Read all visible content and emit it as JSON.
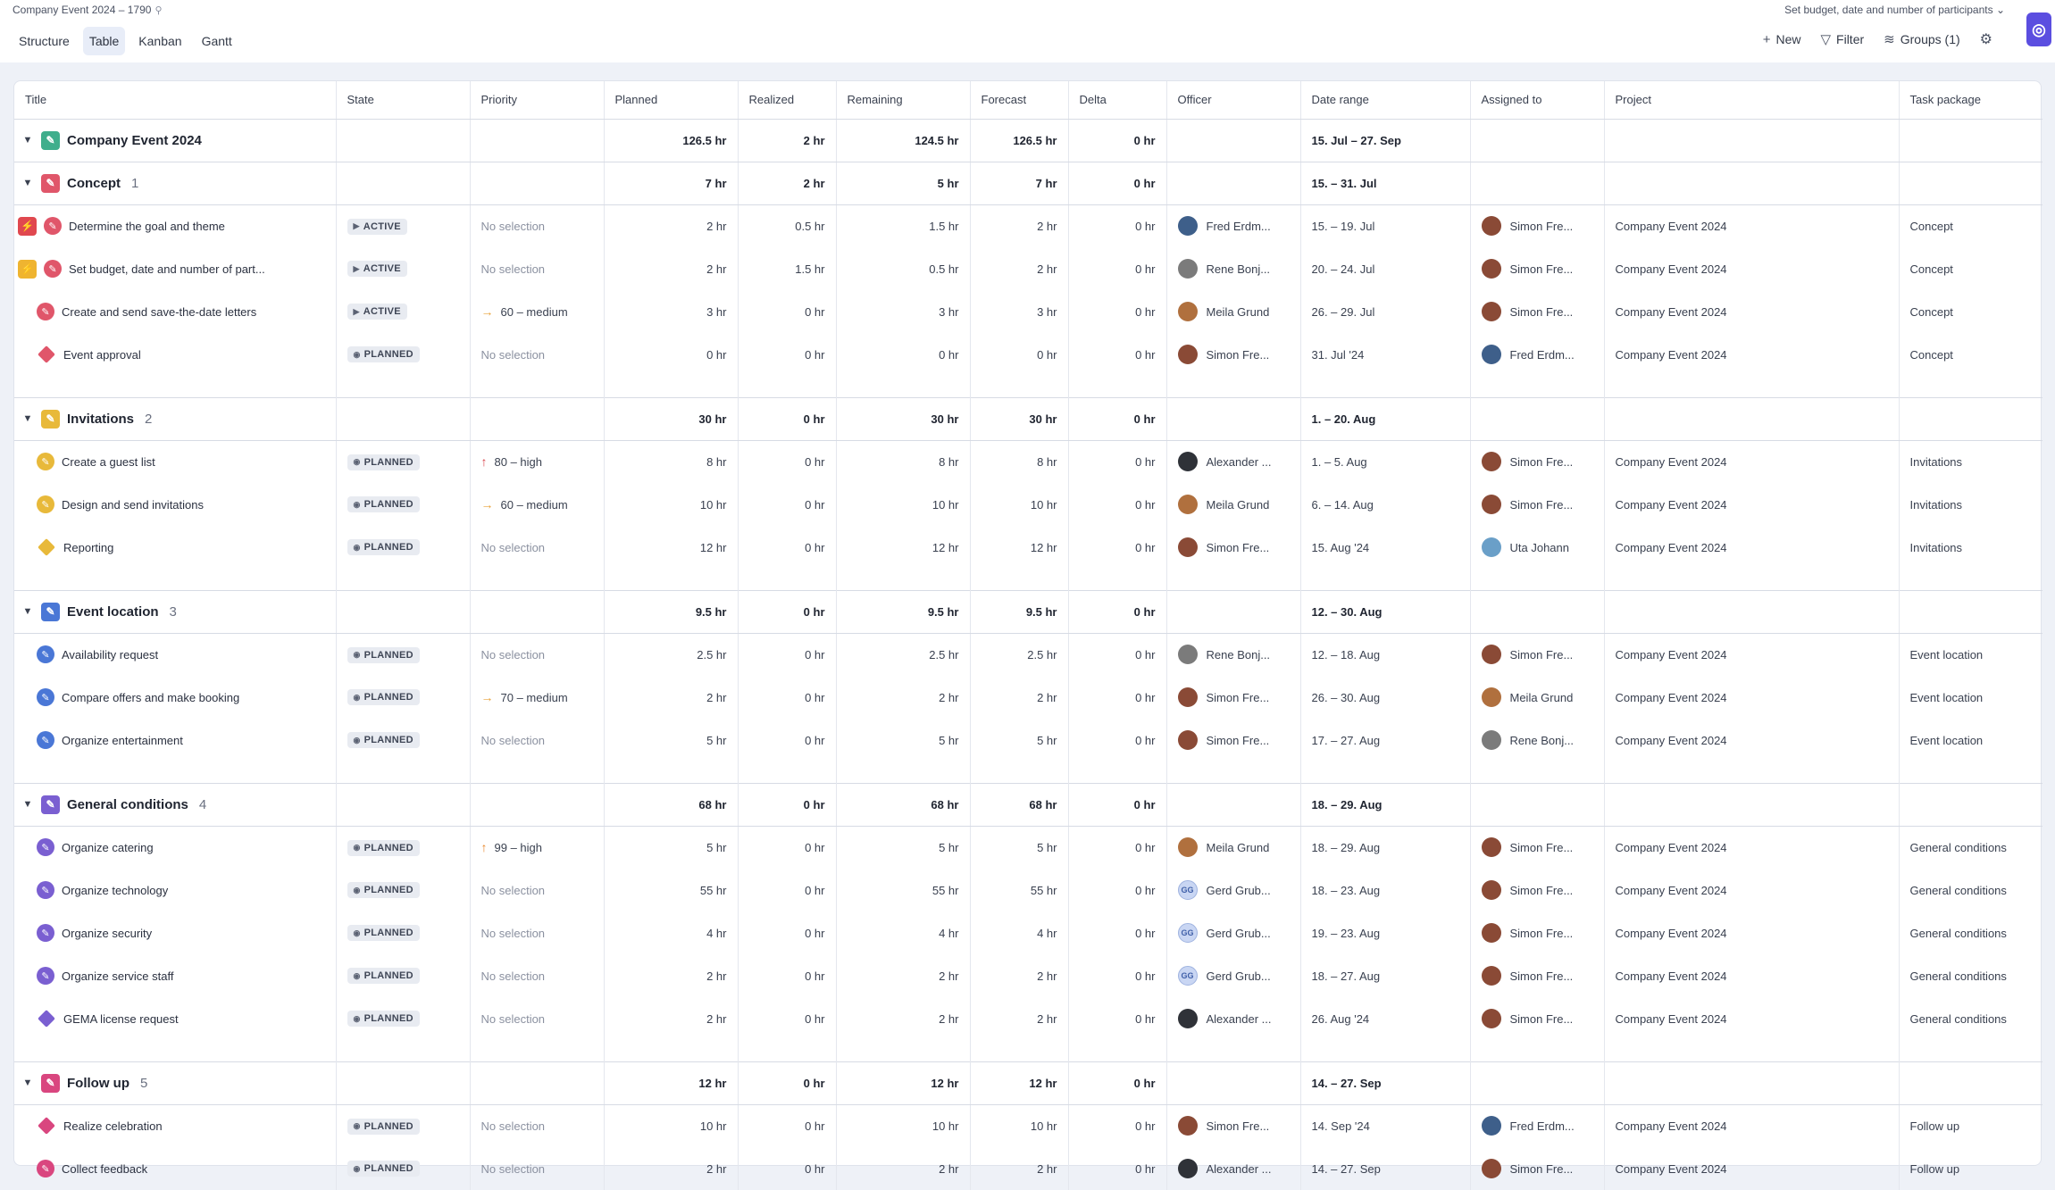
{
  "app": {
    "breadcrumb": "Company Event 2024 – 1790",
    "focus_task": "Set budget, date and number of participants",
    "tabs": [
      {
        "label": "Structure",
        "active": false
      },
      {
        "label": "Table",
        "active": true
      },
      {
        "label": "Kanban",
        "active": false
      },
      {
        "label": "Gantt",
        "active": false
      }
    ],
    "actions": {
      "new": "New",
      "filter": "Filter",
      "groups": "Groups (1)"
    }
  },
  "columns": [
    "Title",
    "State",
    "Priority",
    "Planned",
    "Realized",
    "Remaining",
    "Forecast",
    "Delta",
    "Officer",
    "Date range",
    "Assigned to",
    "Project",
    "Task package"
  ],
  "colors": {
    "accent": "#5b4ee0",
    "concept": "#e0566a",
    "invitations": "#e8b93a",
    "event_location": "#4a77d6",
    "general_conditions": "#7a5fd1",
    "follow_up": "#d9467f",
    "project": "#3fae8c"
  },
  "rows": [
    {
      "kind": "group",
      "name": "Company Event 2024",
      "count": "",
      "icon": "project",
      "planned": "126.5 hr",
      "realized": "2 hr",
      "remaining": "124.5 hr",
      "forecast": "126.5 hr",
      "delta": "0 hr",
      "date": "15. Jul – 27. Sep"
    },
    {
      "kind": "group",
      "name": "Concept",
      "count": "1",
      "icon": "concept",
      "planned": "7 hr",
      "realized": "2 hr",
      "remaining": "5 hr",
      "forecast": "7 hr",
      "delta": "0 hr",
      "date": "15. – 31. Jul"
    },
    {
      "kind": "task",
      "flag": "red",
      "shape": "circle",
      "color": "concept",
      "title": "Determine the goal and theme",
      "state": "ACTIVE",
      "priority": "No selection",
      "prio_arrow": "",
      "planned": "2 hr",
      "realized": "0.5 hr",
      "remaining": "1.5 hr",
      "forecast": "2 hr",
      "delta": "0 hr",
      "officer": "Fred Erdm...",
      "officer_av": "#3e5f8a",
      "date": "15. – 19. Jul",
      "assigned": "Simon Fre...",
      "assigned_av": "#8a4a36",
      "project": "Company Event 2024",
      "package": "Concept"
    },
    {
      "kind": "task",
      "flag": "yellow",
      "shape": "circle",
      "color": "concept",
      "title": "Set budget, date and number of part...",
      "state": "ACTIVE",
      "priority": "No selection",
      "prio_arrow": "",
      "planned": "2 hr",
      "realized": "1.5 hr",
      "remaining": "0.5 hr",
      "forecast": "2 hr",
      "delta": "0 hr",
      "officer": "Rene Bonj...",
      "officer_av": "#7b7b7b",
      "date": "20. – 24. Jul",
      "assigned": "Simon Fre...",
      "assigned_av": "#8a4a36",
      "project": "Company Event 2024",
      "package": "Concept"
    },
    {
      "kind": "task",
      "flag": "",
      "shape": "circle",
      "color": "concept",
      "title": "Create and send save-the-date letters",
      "state": "ACTIVE",
      "priority": "60 – medium",
      "prio_arrow": "right",
      "planned": "3 hr",
      "realized": "0 hr",
      "remaining": "3 hr",
      "forecast": "3 hr",
      "delta": "0 hr",
      "officer": "Meila Grund",
      "officer_av": "#b0703e",
      "date": "26. – 29. Jul",
      "assigned": "Simon Fre...",
      "assigned_av": "#8a4a36",
      "project": "Company Event 2024",
      "package": "Concept"
    },
    {
      "kind": "task",
      "flag": "",
      "shape": "diamond",
      "color": "concept",
      "title": "Event approval",
      "state": "PLANNED",
      "priority": "No selection",
      "prio_arrow": "",
      "planned": "0 hr",
      "realized": "0 hr",
      "remaining": "0 hr",
      "forecast": "0 hr",
      "delta": "0 hr",
      "officer": "Simon Fre...",
      "officer_av": "#8a4a36",
      "date": "31. Jul '24",
      "assigned": "Fred Erdm...",
      "assigned_av": "#3e5f8a",
      "project": "Company Event 2024",
      "package": "Concept"
    },
    {
      "kind": "spacer"
    },
    {
      "kind": "group",
      "name": "Invitations",
      "count": "2",
      "icon": "invitations",
      "planned": "30 hr",
      "realized": "0 hr",
      "remaining": "30 hr",
      "forecast": "30 hr",
      "delta": "0 hr",
      "date": "1. – 20. Aug"
    },
    {
      "kind": "task",
      "flag": "",
      "shape": "circle",
      "color": "invitations",
      "title": "Create a guest list",
      "state": "PLANNED",
      "priority": "80 – high",
      "prio_arrow": "up-red",
      "planned": "8 hr",
      "realized": "0 hr",
      "remaining": "8 hr",
      "forecast": "8 hr",
      "delta": "0 hr",
      "officer": "Alexander ...",
      "officer_av": "#2f3238",
      "date": "1. – 5. Aug",
      "assigned": "Simon Fre...",
      "assigned_av": "#8a4a36",
      "project": "Company Event 2024",
      "package": "Invitations"
    },
    {
      "kind": "task",
      "flag": "",
      "shape": "circle",
      "color": "invitations",
      "title": "Design and send invitations",
      "state": "PLANNED",
      "priority": "60 – medium",
      "prio_arrow": "right",
      "planned": "10 hr",
      "realized": "0 hr",
      "remaining": "10 hr",
      "forecast": "10 hr",
      "delta": "0 hr",
      "officer": "Meila Grund",
      "officer_av": "#b0703e",
      "date": "6. – 14. Aug",
      "assigned": "Simon Fre...",
      "assigned_av": "#8a4a36",
      "project": "Company Event 2024",
      "package": "Invitations"
    },
    {
      "kind": "task",
      "flag": "",
      "shape": "diamond",
      "color": "invitations",
      "title": "Reporting",
      "state": "PLANNED",
      "priority": "No selection",
      "prio_arrow": "",
      "planned": "12 hr",
      "realized": "0 hr",
      "remaining": "12 hr",
      "forecast": "12 hr",
      "delta": "0 hr",
      "officer": "Simon Fre...",
      "officer_av": "#8a4a36",
      "date": "15. Aug '24",
      "assigned": "Uta Johann",
      "assigned_av": "#6a9fc8",
      "project": "Company Event 2024",
      "package": "Invitations"
    },
    {
      "kind": "spacer"
    },
    {
      "kind": "group",
      "name": "Event location",
      "count": "3",
      "icon": "event_location",
      "planned": "9.5 hr",
      "realized": "0 hr",
      "remaining": "9.5 hr",
      "forecast": "9.5 hr",
      "delta": "0 hr",
      "date": "12. – 30. Aug"
    },
    {
      "kind": "task",
      "flag": "",
      "shape": "circle",
      "color": "event_location",
      "title": "Availability request",
      "state": "PLANNED",
      "priority": "No selection",
      "prio_arrow": "",
      "planned": "2.5 hr",
      "realized": "0 hr",
      "remaining": "2.5 hr",
      "forecast": "2.5 hr",
      "delta": "0 hr",
      "officer": "Rene Bonj...",
      "officer_av": "#7b7b7b",
      "date": "12. – 18. Aug",
      "assigned": "Simon Fre...",
      "assigned_av": "#8a4a36",
      "project": "Company Event 2024",
      "package": "Event location"
    },
    {
      "kind": "task",
      "flag": "",
      "shape": "circle",
      "color": "event_location",
      "title": "Compare offers and make booking",
      "state": "PLANNED",
      "priority": "70 – medium",
      "prio_arrow": "right",
      "planned": "2 hr",
      "realized": "0 hr",
      "remaining": "2 hr",
      "forecast": "2 hr",
      "delta": "0 hr",
      "officer": "Simon Fre...",
      "officer_av": "#8a4a36",
      "date": "26. – 30. Aug",
      "assigned": "Meila Grund",
      "assigned_av": "#b0703e",
      "project": "Company Event 2024",
      "package": "Event location"
    },
    {
      "kind": "task",
      "flag": "",
      "shape": "circle",
      "color": "event_location",
      "title": "Organize entertainment",
      "state": "PLANNED",
      "priority": "No selection",
      "prio_arrow": "",
      "planned": "5 hr",
      "realized": "0 hr",
      "remaining": "5 hr",
      "forecast": "5 hr",
      "delta": "0 hr",
      "officer": "Simon Fre...",
      "officer_av": "#8a4a36",
      "date": "17. – 27. Aug",
      "assigned": "Rene Bonj...",
      "assigned_av": "#7b7b7b",
      "project": "Company Event 2024",
      "package": "Event location"
    },
    {
      "kind": "spacer"
    },
    {
      "kind": "group",
      "name": "General conditions",
      "count": "4",
      "icon": "general_conditions",
      "planned": "68 hr",
      "realized": "0 hr",
      "remaining": "68 hr",
      "forecast": "68 hr",
      "delta": "0 hr",
      "date": "18. – 29. Aug"
    },
    {
      "kind": "task",
      "flag": "",
      "shape": "circle",
      "color": "general_conditions",
      "title": "Organize catering",
      "state": "PLANNED",
      "priority": "99 – high",
      "prio_arrow": "up-orange",
      "planned": "5 hr",
      "realized": "0 hr",
      "remaining": "5 hr",
      "forecast": "5 hr",
      "delta": "0 hr",
      "officer": "Meila Grund",
      "officer_av": "#b0703e",
      "date": "18. – 29. Aug",
      "assigned": "Simon Fre...",
      "assigned_av": "#8a4a36",
      "project": "Company Event 2024",
      "package": "General conditions"
    },
    {
      "kind": "task",
      "flag": "",
      "shape": "circle",
      "color": "general_conditions",
      "title": "Organize technology",
      "state": "PLANNED",
      "priority": "No selection",
      "prio_arrow": "",
      "planned": "55 hr",
      "realized": "0 hr",
      "remaining": "55 hr",
      "forecast": "55 hr",
      "delta": "0 hr",
      "officer": "Gerd Grub...",
      "officer_av": "initials",
      "officer_initials": "GG",
      "date": "18. – 23. Aug",
      "assigned": "Simon Fre...",
      "assigned_av": "#8a4a36",
      "project": "Company Event 2024",
      "package": "General conditions"
    },
    {
      "kind": "task",
      "flag": "",
      "shape": "circle",
      "color": "general_conditions",
      "title": "Organize security",
      "state": "PLANNED",
      "priority": "No selection",
      "prio_arrow": "",
      "planned": "4 hr",
      "realized": "0 hr",
      "remaining": "4 hr",
      "forecast": "4 hr",
      "delta": "0 hr",
      "officer": "Gerd Grub...",
      "officer_av": "initials",
      "officer_initials": "GG",
      "date": "19. – 23. Aug",
      "assigned": "Simon Fre...",
      "assigned_av": "#8a4a36",
      "project": "Company Event 2024",
      "package": "General conditions"
    },
    {
      "kind": "task",
      "flag": "",
      "shape": "circle",
      "color": "general_conditions",
      "title": "Organize service staff",
      "state": "PLANNED",
      "priority": "No selection",
      "prio_arrow": "",
      "planned": "2 hr",
      "realized": "0 hr",
      "remaining": "2 hr",
      "forecast": "2 hr",
      "delta": "0 hr",
      "officer": "Gerd Grub...",
      "officer_av": "initials",
      "officer_initials": "GG",
      "date": "18. – 27. Aug",
      "assigned": "Simon Fre...",
      "assigned_av": "#8a4a36",
      "project": "Company Event 2024",
      "package": "General conditions"
    },
    {
      "kind": "task",
      "flag": "",
      "shape": "diamond",
      "color": "general_conditions",
      "title": "GEMA license request",
      "state": "PLANNED",
      "priority": "No selection",
      "prio_arrow": "",
      "planned": "2 hr",
      "realized": "0 hr",
      "remaining": "2 hr",
      "forecast": "2 hr",
      "delta": "0 hr",
      "officer": "Alexander ...",
      "officer_av": "#2f3238",
      "date": "26. Aug '24",
      "assigned": "Simon Fre...",
      "assigned_av": "#8a4a36",
      "project": "Company Event 2024",
      "package": "General conditions"
    },
    {
      "kind": "spacer"
    },
    {
      "kind": "group",
      "name": "Follow up",
      "count": "5",
      "icon": "follow_up",
      "planned": "12 hr",
      "realized": "0 hr",
      "remaining": "12 hr",
      "forecast": "12 hr",
      "delta": "0 hr",
      "date": "14. – 27. Sep"
    },
    {
      "kind": "task",
      "flag": "",
      "shape": "diamond",
      "color": "follow_up",
      "title": "Realize celebration",
      "state": "PLANNED",
      "priority": "No selection",
      "prio_arrow": "",
      "planned": "10 hr",
      "realized": "0 hr",
      "remaining": "10 hr",
      "forecast": "10 hr",
      "delta": "0 hr",
      "officer": "Simon Fre...",
      "officer_av": "#8a4a36",
      "date": "14. Sep '24",
      "assigned": "Fred Erdm...",
      "assigned_av": "#3e5f8a",
      "project": "Company Event 2024",
      "package": "Follow up"
    },
    {
      "kind": "task",
      "flag": "",
      "shape": "circle",
      "color": "follow_up",
      "title": "Collect feedback",
      "state": "PLANNED",
      "priority": "No selection",
      "prio_arrow": "",
      "planned": "2 hr",
      "realized": "0 hr",
      "remaining": "2 hr",
      "forecast": "2 hr",
      "delta": "0 hr",
      "officer": "Alexander ...",
      "officer_av": "#2f3238",
      "date": "14. – 27. Sep",
      "assigned": "Simon Fre...",
      "assigned_av": "#8a4a36",
      "project": "Company Event 2024",
      "package": "Follow up",
      "cut": true
    }
  ]
}
